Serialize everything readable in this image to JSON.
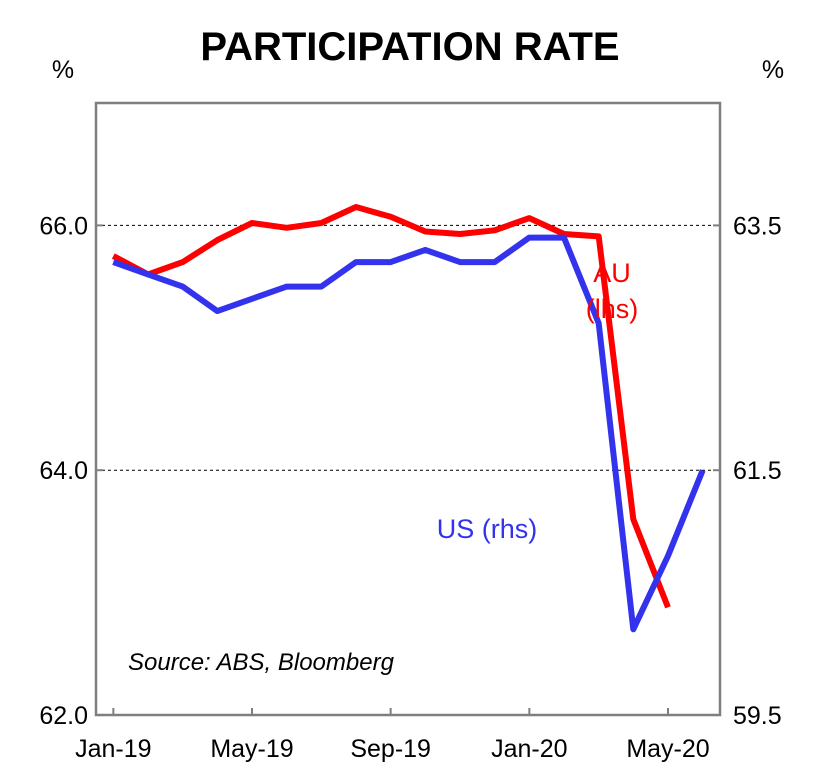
{
  "chart_data": {
    "type": "line",
    "title": "PARTICIPATION RATE",
    "left_axis": {
      "unit": "%",
      "ylim": [
        62.0,
        67.0
      ],
      "ticks": [
        "62.0",
        "64.0",
        "66.0"
      ],
      "tick_values": [
        62.0,
        64.0,
        66.0
      ]
    },
    "right_axis": {
      "unit": "%",
      "ylim": [
        59.5,
        64.5
      ],
      "ticks": [
        "59.5",
        "61.5",
        "63.5"
      ],
      "tick_values": [
        59.5,
        61.5,
        63.5
      ]
    },
    "x_labels": [
      "Jan-19",
      "May-19",
      "Sep-19",
      "Jan-20",
      "May-20"
    ],
    "x_label_positions": [
      0,
      4,
      8,
      12,
      16
    ],
    "x_range": [
      -0.5,
      17.5
    ],
    "gridlines": [
      64.0,
      66.0
    ],
    "series": [
      {
        "name": "AU",
        "label_lines": [
          "AU",
          "(lhs)"
        ],
        "axis": "left",
        "color": "#ff0000",
        "x": [
          0,
          1,
          2,
          3,
          4,
          5,
          6,
          7,
          8,
          9,
          10,
          11,
          12,
          13,
          14,
          15,
          16
        ],
        "values": [
          65.75,
          65.6,
          65.7,
          65.88,
          66.02,
          65.98,
          66.02,
          66.15,
          66.07,
          65.95,
          65.93,
          65.96,
          66.06,
          65.93,
          65.91,
          63.6,
          62.88
        ]
      },
      {
        "name": "US",
        "label_lines": [
          "US (rhs)"
        ],
        "axis": "right",
        "color": "#3333ee",
        "x": [
          0,
          1,
          2,
          3,
          4,
          5,
          6,
          7,
          8,
          9,
          10,
          11,
          12,
          13,
          14,
          15,
          16,
          17
        ],
        "values": [
          63.2,
          63.1,
          63.0,
          62.8,
          62.9,
          63.0,
          63.0,
          63.2,
          63.2,
          63.3,
          63.2,
          63.2,
          63.4,
          63.4,
          62.7,
          60.2,
          60.8,
          61.5
        ]
      }
    ],
    "source": "Source: ABS, Bloomberg"
  }
}
